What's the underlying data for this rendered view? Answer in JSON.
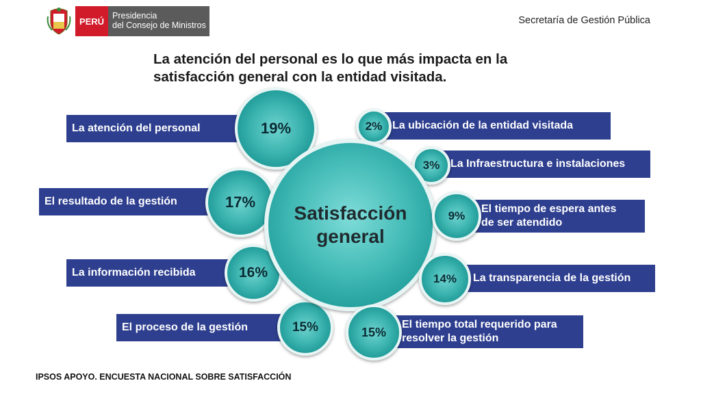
{
  "header": {
    "country": "PERÚ",
    "institution_line1": "Presidencia",
    "institution_line2": "del Consejo de Ministros",
    "department": "Secretaría de Gestión Pública"
  },
  "headline_line1": "La atención del personal es lo que más impacta en la",
  "headline_line2": "satisfacción general con la entidad visitada.",
  "center": {
    "line1": "Satisfacción",
    "line2": "general"
  },
  "factors": [
    {
      "label": "La atención del personal",
      "value": "19%"
    },
    {
      "label": "El resultado de la gestión",
      "value": "17%"
    },
    {
      "label": "La información recibida",
      "value": "16%"
    },
    {
      "label": "El proceso de la gestión",
      "value": "15%"
    },
    {
      "label": "La ubicación de la entidad visitada",
      "value": "2%"
    },
    {
      "label": "La Infraestructura e instalaciones",
      "value": "3%"
    },
    {
      "label_line1": "El tiempo de espera antes",
      "label_line2": "de ser atendido",
      "value": "9%"
    },
    {
      "label": "La transparencia de la gestión",
      "value": "14%"
    },
    {
      "label_line1": "El tiempo total requerido para",
      "label_line2": "resolver la gestión",
      "value": "15%"
    }
  ],
  "footer": "IPSOS APOYO. ENCUESTA NACIONAL SOBRE SATISFACCIÓN",
  "colors": {
    "bar": "#2e3f8f",
    "circle": "#3cb4b0",
    "peru_red": "#d11a2a",
    "pcm_gray": "#5b5b5b"
  }
}
